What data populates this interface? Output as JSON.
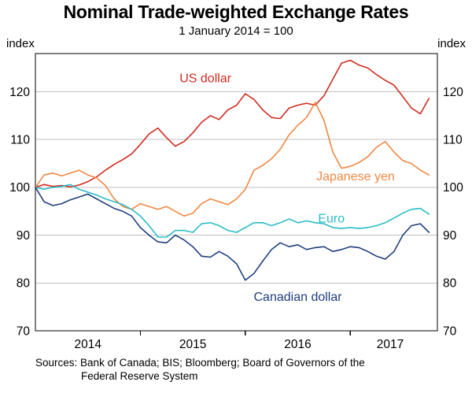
{
  "header": {
    "title": "Nominal Trade-weighted Exchange Rates",
    "subtitle": "1 January 2014 = 100"
  },
  "chart_data": {
    "type": "line",
    "title": "Nominal Trade-weighted Exchange Rates",
    "subtitle": "1 January 2014 = 100",
    "ylabel_left": "index",
    "ylabel_right": "index",
    "xlim": [
      2014,
      2017.83
    ],
    "ylim": [
      70,
      128
    ],
    "yticks": [
      70,
      80,
      90,
      100,
      110,
      120
    ],
    "x_year_ticks": [
      2015,
      2016,
      2017
    ],
    "xtick_labels": [
      {
        "label": "2014",
        "x": 2014.5
      },
      {
        "label": "2015",
        "x": 2015.5
      },
      {
        "label": "2016",
        "x": 2016.5
      },
      {
        "label": "2017",
        "x": 2017.38
      }
    ],
    "grid": true,
    "legend_position": "inline-labels",
    "axis_color": "#000000",
    "grid_color": "#c0c0c0",
    "x": [
      2014,
      2014.083,
      2014.167,
      2014.25,
      2014.333,
      2014.417,
      2014.5,
      2014.583,
      2014.667,
      2014.75,
      2014.833,
      2014.917,
      2015,
      2015.083,
      2015.167,
      2015.25,
      2015.333,
      2015.417,
      2015.5,
      2015.583,
      2015.667,
      2015.75,
      2015.833,
      2015.917,
      2016,
      2016.083,
      2016.167,
      2016.25,
      2016.333,
      2016.417,
      2016.5,
      2016.583,
      2016.667,
      2016.75,
      2016.833,
      2016.917,
      2017,
      2017.083,
      2017.167,
      2017.25,
      2017.333,
      2017.417,
      2017.5,
      2017.583,
      2017.667,
      2017.75
    ],
    "series": [
      {
        "name": "US dollar",
        "color": "#d02b20",
        "label_pos": {
          "x": 2015.62,
          "y": 122.9
        },
        "values": [
          100,
          100.6,
          100.2,
          100.4,
          100.1,
          100.5,
          101.2,
          102.2,
          103.6,
          104.8,
          105.8,
          107,
          109,
          111.2,
          112.4,
          110.4,
          108.6,
          109.6,
          111.4,
          113.6,
          115,
          114.2,
          116.2,
          117.2,
          119.6,
          118.4,
          116.2,
          114.6,
          114.4,
          116.6,
          117.2,
          117.6,
          117.2,
          119.2,
          122.6,
          126,
          126.6,
          125.6,
          125,
          123.6,
          122.4,
          121.4,
          119,
          116.6,
          115.4,
          118.6
        ]
      },
      {
        "name": "Japanese yen",
        "color": "#ef8742",
        "label_pos": {
          "x": 2017.05,
          "y": 102.4
        },
        "values": [
          100,
          102.6,
          103,
          102.4,
          103,
          103.6,
          102.6,
          102,
          100.4,
          97.6,
          96,
          95.4,
          96.6,
          96,
          95.4,
          96,
          95,
          94,
          94.6,
          96.6,
          97.6,
          97,
          96.4,
          97.6,
          99.6,
          103.6,
          104.6,
          106,
          108,
          111,
          113,
          114.6,
          117.8,
          114,
          107.4,
          104,
          104.4,
          105.2,
          106.4,
          108.4,
          109.6,
          107.4,
          105.6,
          105,
          103.6,
          102.6
        ]
      },
      {
        "name": "Euro",
        "color": "#2bbcc4",
        "label_pos": {
          "x": 2016.82,
          "y": 93.6
        },
        "values": [
          100,
          99.6,
          100,
          100.2,
          100.6,
          99.6,
          99,
          98.4,
          97.6,
          97,
          96.4,
          95.4,
          94,
          92,
          89.6,
          89.6,
          91,
          91,
          90.6,
          92.4,
          92.6,
          92,
          91,
          90.6,
          91.6,
          92.6,
          92.6,
          92,
          92.6,
          93.4,
          92.6,
          93,
          92.6,
          92.4,
          91.6,
          91.4,
          91.6,
          91.4,
          91.6,
          92,
          92.6,
          93.6,
          94.6,
          95.4,
          95.6,
          94.4
        ]
      },
      {
        "name": "Canadian dollar",
        "color": "#1f3e7c",
        "label_pos": {
          "x": 2016.5,
          "y": 77.2
        },
        "values": [
          100,
          97,
          96.2,
          96.6,
          97.4,
          98,
          98.6,
          97.6,
          96.6,
          95.6,
          95,
          94,
          91.6,
          90,
          88.6,
          88.4,
          90,
          89,
          87.6,
          85.6,
          85.4,
          86.6,
          85.6,
          84,
          80.6,
          82,
          84.6,
          87,
          88.4,
          87.6,
          88,
          87,
          87.4,
          87.6,
          86.6,
          87,
          87.6,
          87.4,
          86.6,
          85.6,
          85,
          86.6,
          90,
          92,
          92.4,
          90.6
        ]
      }
    ]
  },
  "footer": {
    "sources_label": "Sources:",
    "sources_line1": "Bank of Canada; BIS; Bloomberg; Board of Governors of the",
    "sources_line2": "Federal Reserve System"
  }
}
